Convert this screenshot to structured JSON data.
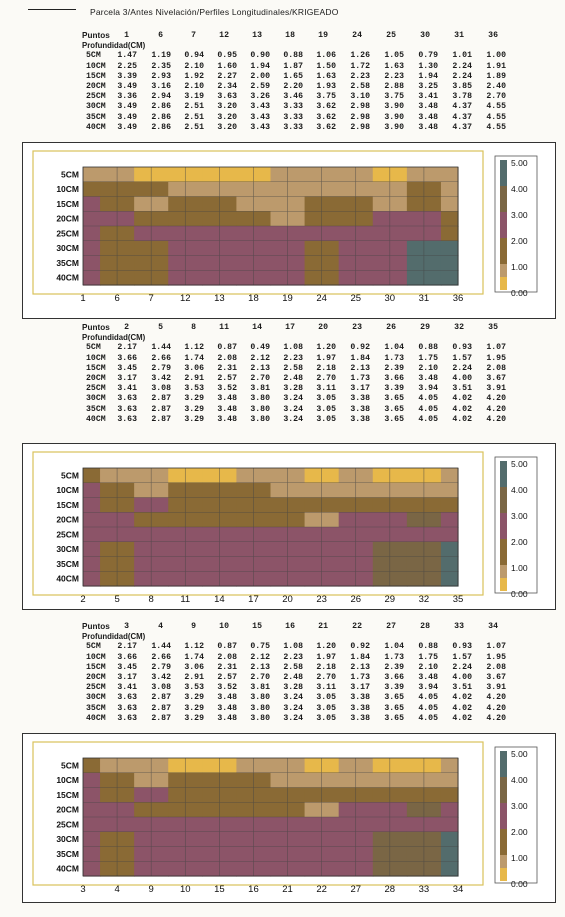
{
  "page_title": "Parcela 3/Antes Nivelación/Perfiles Longitudinales/KRIGEADO",
  "colors": {
    "c0": "#e7b84a",
    "c1": "#bc9a6c",
    "c2": "#8a6a35",
    "c3": "#8c5468",
    "c4": "#7a6645",
    "c5": "#536c6c"
  },
  "legend": {
    "ticks": [
      "5.00",
      "4.00",
      "3.00",
      "2.00",
      "1.00",
      "0.00"
    ],
    "colors": [
      "#536c6c",
      "#7a6645",
      "#8c5468",
      "#8a6a35",
      "#bc9a6c",
      "#e7b84a"
    ]
  },
  "sections": [
    {
      "puntos_label": "Puntos",
      "profundidad_label": "Profundidad(CM)",
      "points": [
        "1",
        "6",
        "7",
        "12",
        "13",
        "18",
        "19",
        "24",
        "25",
        "30",
        "31",
        "36"
      ],
      "rows": [
        {
          "depth": "5CM",
          "values": [
            "1.47",
            "1.19",
            "0.94",
            "0.95",
            "0.90",
            "0.88",
            "1.06",
            "1.26",
            "1.05",
            "0.79",
            "1.01",
            "1.00"
          ]
        },
        {
          "depth": "10CM",
          "values": [
            "2.25",
            "2.35",
            "2.10",
            "1.60",
            "1.94",
            "1.87",
            "1.50",
            "1.72",
            "1.63",
            "1.30",
            "2.24",
            "1.91"
          ]
        },
        {
          "depth": "15CM",
          "values": [
            "3.39",
            "2.93",
            "1.92",
            "2.27",
            "2.00",
            "1.65",
            "1.63",
            "2.23",
            "2.23",
            "1.94",
            "2.24",
            "1.89"
          ]
        },
        {
          "depth": "20CM",
          "values": [
            "3.49",
            "3.16",
            "2.10",
            "2.34",
            "2.59",
            "2.20",
            "1.93",
            "2.58",
            "2.88",
            "3.25",
            "3.85",
            "2.40"
          ]
        },
        {
          "depth": "25CM",
          "values": [
            "3.36",
            "2.94",
            "3.19",
            "3.63",
            "3.26",
            "3.46",
            "3.75",
            "3.10",
            "3.75",
            "3.41",
            "3.78",
            "2.70"
          ]
        },
        {
          "depth": "30CM",
          "values": [
            "3.49",
            "2.86",
            "2.51",
            "3.20",
            "3.43",
            "3.33",
            "3.62",
            "2.98",
            "3.90",
            "3.48",
            "4.37",
            "4.55"
          ]
        },
        {
          "depth": "35CM",
          "values": [
            "3.49",
            "2.86",
            "2.51",
            "3.20",
            "3.43",
            "3.33",
            "3.62",
            "2.98",
            "3.90",
            "3.48",
            "4.37",
            "4.55"
          ]
        },
        {
          "depth": "40CM",
          "values": [
            "3.49",
            "2.86",
            "2.51",
            "3.20",
            "3.43",
            "3.33",
            "3.62",
            "2.98",
            "3.90",
            "3.48",
            "4.37",
            "4.55"
          ]
        }
      ],
      "chart": {
        "y_labels": [
          "5CM",
          "10CM",
          "15CM",
          "20CM",
          "25CM",
          "30CM",
          "35CM",
          "40CM"
        ],
        "x_labels": [
          "1",
          "6",
          "7",
          "12",
          "13",
          "18",
          "19",
          "24",
          "25",
          "30",
          "31",
          "36"
        ]
      }
    },
    {
      "puntos_label": "Puntos",
      "profundidad_label": "Profundidad(CM)",
      "points": [
        "2",
        "5",
        "8",
        "11",
        "14",
        "17",
        "20",
        "23",
        "26",
        "29",
        "32",
        "35"
      ],
      "rows": [
        {
          "depth": "5CM",
          "values": [
            "2.17",
            "1.44",
            "1.12",
            "0.87",
            "0.49",
            "1.08",
            "1.20",
            "0.92",
            "1.04",
            "0.88",
            "0.93",
            "1.07"
          ]
        },
        {
          "depth": "10CM",
          "values": [
            "3.66",
            "2.66",
            "1.74",
            "2.08",
            "2.12",
            "2.23",
            "1.97",
            "1.84",
            "1.73",
            "1.75",
            "1.57",
            "1.95"
          ]
        },
        {
          "depth": "15CM",
          "values": [
            "3.45",
            "2.79",
            "3.06",
            "2.31",
            "2.13",
            "2.58",
            "2.18",
            "2.13",
            "2.39",
            "2.10",
            "2.24",
            "2.08"
          ]
        },
        {
          "depth": "20CM",
          "values": [
            "3.17",
            "3.42",
            "2.91",
            "2.57",
            "2.70",
            "2.48",
            "2.70",
            "1.73",
            "3.66",
            "3.48",
            "4.00",
            "3.67"
          ]
        },
        {
          "depth": "25CM",
          "values": [
            "3.41",
            "3.08",
            "3.53",
            "3.52",
            "3.81",
            "3.28",
            "3.11",
            "3.17",
            "3.39",
            "3.94",
            "3.51",
            "3.91"
          ]
        },
        {
          "depth": "30CM",
          "values": [
            "3.63",
            "2.87",
            "3.29",
            "3.48",
            "3.80",
            "3.24",
            "3.05",
            "3.38",
            "3.65",
            "4.05",
            "4.02",
            "4.20"
          ]
        },
        {
          "depth": "35CM",
          "values": [
            "3.63",
            "2.87",
            "3.29",
            "3.48",
            "3.80",
            "3.24",
            "3.05",
            "3.38",
            "3.65",
            "4.05",
            "4.02",
            "4.20"
          ]
        },
        {
          "depth": "40CM",
          "values": [
            "3.63",
            "2.87",
            "3.29",
            "3.48",
            "3.80",
            "3.24",
            "3.05",
            "3.38",
            "3.65",
            "4.05",
            "4.02",
            "4.20"
          ]
        }
      ],
      "chart": {
        "y_labels": [
          "5CM",
          "10CM",
          "15CM",
          "20CM",
          "25CM",
          "30CM",
          "35CM",
          "40CM"
        ],
        "x_labels": [
          "2",
          "5",
          "8",
          "11",
          "14",
          "17",
          "20",
          "23",
          "26",
          "29",
          "32",
          "35"
        ]
      }
    },
    {
      "puntos_label": "Puntos",
      "profundidad_label": "Profundidad(CM)",
      "points": [
        "3",
        "4",
        "9",
        "10",
        "15",
        "16",
        "21",
        "22",
        "27",
        "28",
        "33",
        "34"
      ],
      "rows": [
        {
          "depth": "5CM",
          "values": [
            "2.17",
            "1.44",
            "1.12",
            "0.87",
            "0.75",
            "1.08",
            "1.20",
            "0.92",
            "1.04",
            "0.88",
            "0.93",
            "1.07"
          ]
        },
        {
          "depth": "10CM",
          "values": [
            "3.66",
            "2.66",
            "1.74",
            "2.08",
            "2.12",
            "2.23",
            "1.97",
            "1.84",
            "1.73",
            "1.75",
            "1.57",
            "1.95"
          ]
        },
        {
          "depth": "15CM",
          "values": [
            "3.45",
            "2.79",
            "3.06",
            "2.31",
            "2.13",
            "2.58",
            "2.18",
            "2.13",
            "2.39",
            "2.10",
            "2.24",
            "2.08"
          ]
        },
        {
          "depth": "20CM",
          "values": [
            "3.17",
            "3.42",
            "2.91",
            "2.57",
            "2.70",
            "2.48",
            "2.70",
            "1.73",
            "3.66",
            "3.48",
            "4.00",
            "3.67"
          ]
        },
        {
          "depth": "25CM",
          "values": [
            "3.41",
            "3.08",
            "3.53",
            "3.52",
            "3.81",
            "3.28",
            "3.11",
            "3.17",
            "3.39",
            "3.94",
            "3.51",
            "3.91"
          ]
        },
        {
          "depth": "30CM",
          "values": [
            "3.63",
            "2.87",
            "3.29",
            "3.48",
            "3.80",
            "3.24",
            "3.05",
            "3.38",
            "3.65",
            "4.05",
            "4.02",
            "4.20"
          ]
        },
        {
          "depth": "35CM",
          "values": [
            "3.63",
            "2.87",
            "3.29",
            "3.48",
            "3.80",
            "3.24",
            "3.05",
            "3.38",
            "3.65",
            "4.05",
            "4.02",
            "4.20"
          ]
        },
        {
          "depth": "40CM",
          "values": [
            "3.63",
            "2.87",
            "3.29",
            "3.48",
            "3.80",
            "3.24",
            "3.05",
            "3.38",
            "3.65",
            "4.05",
            "4.02",
            "4.20"
          ]
        }
      ],
      "chart": {
        "y_labels": [
          "5CM",
          "10CM",
          "15CM",
          "20CM",
          "25CM",
          "30CM",
          "35CM",
          "40CM"
        ],
        "x_labels": [
          "3",
          "4",
          "9",
          "10",
          "15",
          "16",
          "21",
          "22",
          "27",
          "28",
          "33",
          "34"
        ]
      }
    }
  ]
}
